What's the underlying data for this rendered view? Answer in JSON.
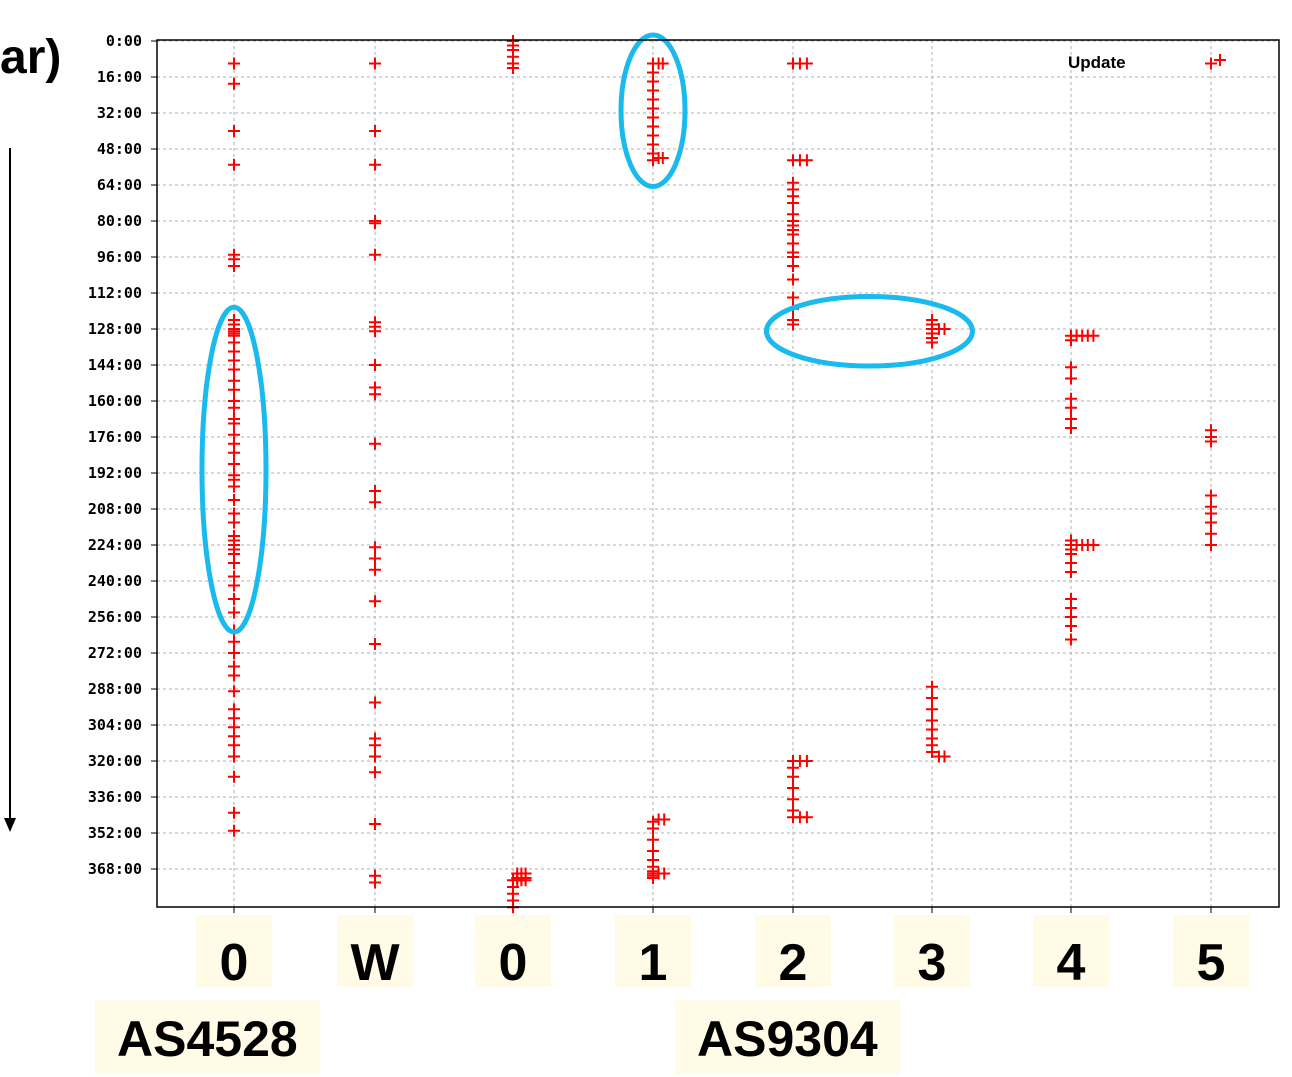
{
  "corner_label": "ar)",
  "chart_data": {
    "type": "scatter",
    "legend": {
      "label": "Update",
      "marker": "+",
      "placement": "top-right"
    },
    "grid": true,
    "marker_color": "#ff0000",
    "highlight_color": "#1ab9ee",
    "y_axis": {
      "ticks": [
        "0:00",
        "16:00",
        "32:00",
        "48:00",
        "64:00",
        "80:00",
        "96:00",
        "112:00",
        "128:00",
        "144:00",
        "160:00",
        "176:00",
        "192:00",
        "208:00",
        "224:00",
        "240:00",
        "256:00",
        "272:00",
        "288:00",
        "304:00",
        "320:00",
        "336:00",
        "352:00",
        "368:00"
      ],
      "range_hours": [
        0,
        385
      ]
    },
    "x_axis": {
      "columns": [
        "0",
        "W",
        "0",
        "1",
        "2",
        "3",
        "4",
        "5"
      ],
      "groups": [
        {
          "label": "AS4528",
          "columns": [
            0,
            1
          ]
        },
        {
          "label": "AS9304",
          "columns": [
            2,
            3,
            4,
            5,
            6,
            7
          ]
        }
      ]
    },
    "series": [
      {
        "column": 0,
        "hours": [
          10,
          19,
          40,
          55,
          95,
          97,
          100,
          124,
          126,
          128,
          129,
          130,
          131,
          134,
          138,
          142,
          146,
          151,
          155,
          160,
          163,
          168,
          170,
          175,
          179,
          183,
          188,
          193,
          195,
          198,
          204,
          210,
          214,
          220,
          222,
          224,
          226,
          228,
          232,
          238,
          242,
          248,
          254,
          262,
          267,
          272,
          278,
          282,
          289,
          297,
          301,
          305,
          309,
          313,
          318,
          327,
          343,
          351
        ],
        "offset": [
          0
        ]
      },
      {
        "column": 1,
        "hours": [
          10,
          40,
          55,
          80,
          81,
          95,
          125,
          127,
          129,
          144,
          154,
          157,
          179,
          200,
          205,
          225,
          230,
          235,
          249,
          268,
          294,
          310,
          313,
          318,
          325,
          348,
          371,
          374
        ],
        "offset": [
          0
        ]
      },
      {
        "column": 2,
        "hours": [
          0,
          2,
          4,
          7,
          10,
          12,
          373,
          376,
          379,
          382,
          385
        ],
        "offset": [
          0
        ]
      },
      {
        "column": 2,
        "hours": [
          370,
          372,
          373
        ],
        "offset": [
          0.03,
          0.06,
          0.09
        ]
      },
      {
        "column": 3,
        "hours": [
          10,
          14,
          18,
          22,
          26,
          30,
          34,
          38,
          42,
          46,
          50,
          53
        ],
        "offset": [
          0
        ]
      },
      {
        "column": 3,
        "hours": [
          10,
          52
        ],
        "offset": [
          0.04,
          0.07
        ]
      },
      {
        "column": 3,
        "hours": [
          347,
          350,
          355,
          360,
          364,
          367,
          369,
          370,
          371,
          372
        ],
        "offset": [
          0
        ]
      },
      {
        "column": 3,
        "hours": [
          346,
          370
        ],
        "offset": [
          0.04,
          0.08
        ]
      },
      {
        "column": 4,
        "hours": [
          10,
          53,
          63,
          66,
          69,
          72,
          77,
          80,
          82,
          84,
          86,
          90,
          94,
          96,
          100,
          106,
          114,
          119,
          124,
          126,
          320,
          323,
          327,
          332,
          337,
          342,
          345
        ],
        "offset": [
          0
        ]
      },
      {
        "column": 4,
        "hours": [
          10,
          53,
          320,
          345
        ],
        "offset": [
          0.05,
          0.1
        ]
      },
      {
        "column": 5,
        "hours": [
          124,
          126,
          128,
          130,
          132,
          134,
          287,
          292,
          297,
          302,
          306,
          310,
          313,
          316
        ],
        "offset": [
          0
        ]
      },
      {
        "column": 5,
        "hours": [
          128,
          318
        ],
        "offset": [
          0.05,
          0.09
        ]
      },
      {
        "column": 6,
        "hours": [
          131,
          133,
          145,
          150,
          159,
          163,
          168,
          172,
          222,
          224,
          226,
          228,
          232,
          236,
          248,
          252,
          256,
          260,
          266
        ],
        "offset": [
          0
        ]
      },
      {
        "column": 6,
        "hours": [
          131,
          224
        ],
        "offset": [
          0.04,
          0.08,
          0.12,
          0.16
        ]
      },
      {
        "column": 7,
        "hours": [
          173,
          176,
          178,
          202,
          207,
          210,
          214,
          219
        ],
        "offset": [
          0
        ]
      },
      {
        "column": 7,
        "hours": [
          224
        ],
        "offset": [
          0.15
        ]
      },
      {
        "column": 7,
        "hours": [
          10
        ],
        "offset": [
          0.05
        ]
      }
    ],
    "highlights": [
      {
        "column_center": 3,
        "hour_from": 0,
        "hour_to": 62
      },
      {
        "column_center": 0,
        "hour_from": 121,
        "hour_to": 260
      },
      {
        "column_center": 4.55,
        "hour_from": 118,
        "hour_to": 140,
        "horizontal": true
      }
    ]
  }
}
